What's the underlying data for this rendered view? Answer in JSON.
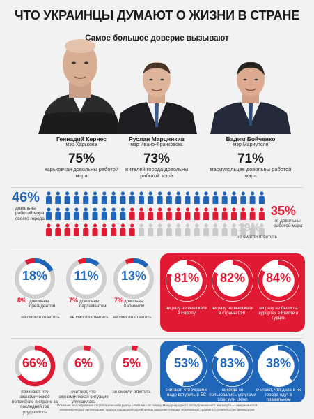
{
  "header": {
    "title": "ЧТО УКРАИНЦЫ ДУМАЮТ О ЖИЗНИ В СТРАНЕ",
    "subtitle": "Самое большое доверие вызывают"
  },
  "mayors": [
    {
      "name": "Геннадий Кернес",
      "post": "мэр Харькова",
      "pct": "75%",
      "desc": "харьковчан довольны работой мэра",
      "value": 75
    },
    {
      "name": "Руслан Марцинкив",
      "post": "мэр Ивано-Франковска",
      "pct": "73%",
      "desc": "жителей города довольны работой мэра",
      "value": 73
    },
    {
      "name": "Вадим Бойченко",
      "post": "мэр Мариуполя",
      "pct": "71%",
      "desc": "мариупольцев довольны работой мэра",
      "value": 71
    }
  ],
  "people_chart": {
    "satisfied": {
      "pct": "46%",
      "label": "довольны работой мэра своего города",
      "value": 46
    },
    "unsatisfied": {
      "pct": "35%",
      "label": "не довольны работой мэра",
      "value": 35
    },
    "no_answer": {
      "pct": "19%",
      "label": "не смогли ответить",
      "value": 19
    },
    "colors": {
      "blue": "#1f65b8",
      "red": "#e01a33",
      "gray": "#c9c9c9"
    }
  },
  "trust_circles": [
    {
      "pct": "18%",
      "value": 18,
      "neg_pct": "8%",
      "neg_value": 8,
      "label": "довольны президентом",
      "no_answer": "не смогли ответить"
    },
    {
      "pct": "11%",
      "value": 11,
      "neg_pct": "7%",
      "neg_value": 7,
      "label": "довольны парламентом",
      "no_answer": "не смогли ответить"
    },
    {
      "pct": "13%",
      "value": 13,
      "neg_pct": "7%",
      "neg_value": 7,
      "label": "довольны Кабмином",
      "no_answer": "не смогли ответить"
    }
  ],
  "travel_circles": [
    {
      "pct": "81%",
      "value": 81,
      "label": "ни разу не выезжали в Европу"
    },
    {
      "pct": "82%",
      "value": 82,
      "label": "ни разу не выезжали в страны СНГ"
    },
    {
      "pct": "84%",
      "value": 84,
      "label": "ни разу не были на курортах в Египте и Турции"
    }
  ],
  "economy_circles": [
    {
      "pct": "66%",
      "value": 66,
      "label": "признают, что экономическое положение в стране за последний год ухудшилось"
    },
    {
      "pct": "6%",
      "value": 6,
      "label": "считают, что экономическая ситуация улучшилась"
    },
    {
      "pct": "5%",
      "value": 5,
      "label": "не смогли ответить"
    }
  ],
  "eu_circles": [
    {
      "pct": "53%",
      "value": 53,
      "label": "считают, что Украине надо вступить в ЕС"
    },
    {
      "pct": "83%",
      "value": 83,
      "label": "никогда не пользовались услугами Uber или Uklon"
    },
    {
      "pct": "38%",
      "value": 38,
      "label": "считают, что дела в их городе идут в правильном направлении"
    }
  ],
  "footer": {
    "line1": "Источник: исследование социологической группы «Рейтинг» по заказу Международного республиканского института — американской",
    "line2": "некоммерческой организации, провозглашающей своей целью оказание помощи отдельным странам в строительстве демократии"
  }
}
